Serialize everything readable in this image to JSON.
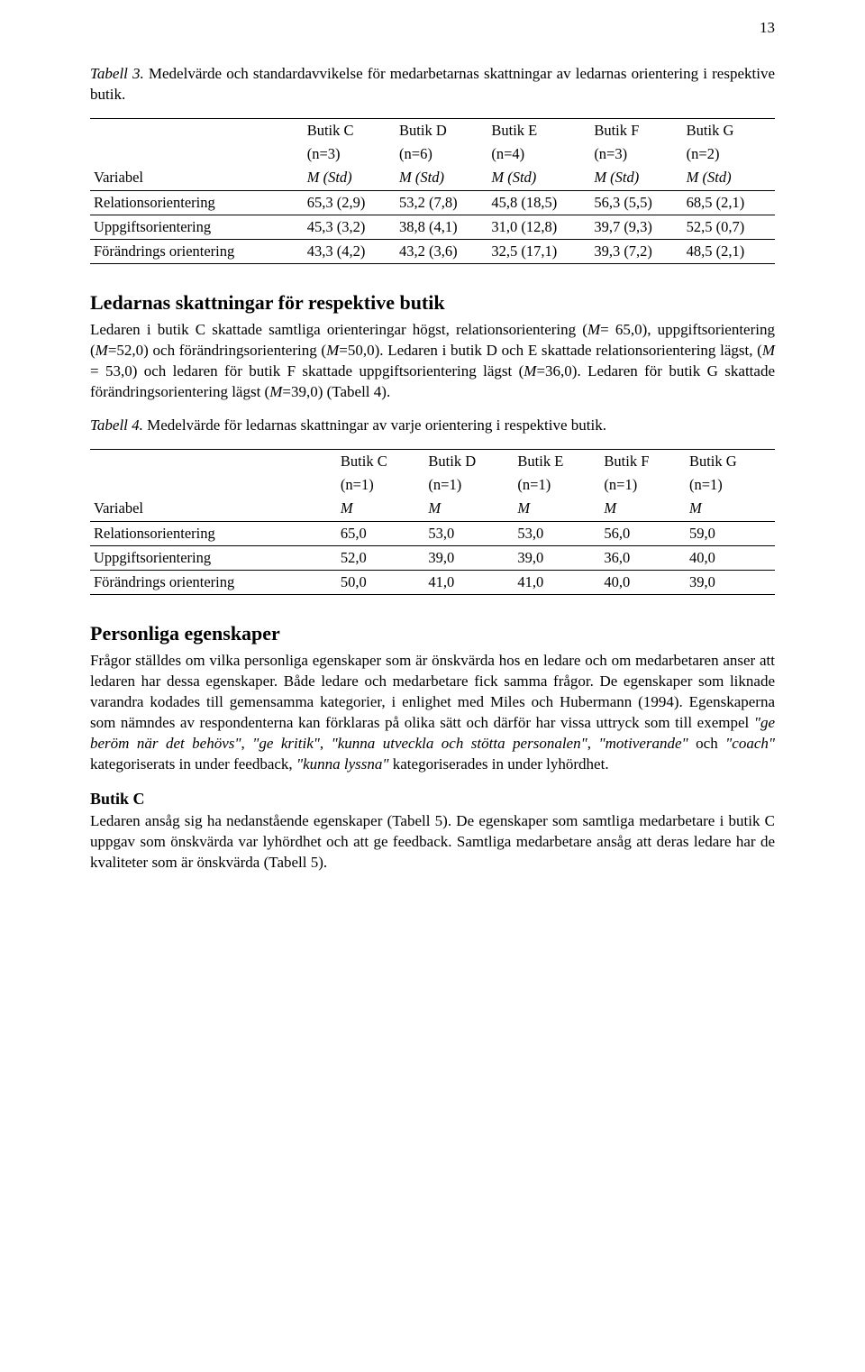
{
  "page_number": "13",
  "table3": {
    "caption_prefix": "Tabell 3.",
    "caption_rest": " Medelvärde och standardavvikelse för medarbetarnas skattningar av ledarnas orientering i respektive butik.",
    "columns": [
      {
        "top": "Butik C",
        "n": "(n=3)",
        "stat": "M (Std)"
      },
      {
        "top": "Butik D",
        "n": "(n=6)",
        "stat": "M (Std)"
      },
      {
        "top": "Butik E",
        "n": "(n=4)",
        "stat": "M (Std)"
      },
      {
        "top": "Butik F",
        "n": "(n=3)",
        "stat": "M (Std)"
      },
      {
        "top": "Butik G",
        "n": "(n=2)",
        "stat": "M (Std)"
      }
    ],
    "var_label": "Variabel",
    "rows": [
      {
        "label": "Relationsorientering",
        "cells": [
          "65,3 (2,9)",
          "53,2 (7,8)",
          "45,8 (18,5)",
          "56,3 (5,5)",
          "68,5 (2,1)"
        ]
      },
      {
        "label": "Uppgiftsorientering",
        "cells": [
          "45,3 (3,2)",
          "38,8 (4,1)",
          "31,0 (12,8)",
          "39,7 (9,3)",
          "52,5 (0,7)"
        ]
      },
      {
        "label": "Förändrings orientering",
        "cells": [
          "43,3 (4,2)",
          "43,2 (3,6)",
          "32,5 (17,1)",
          "39,3 (7,2)",
          "48,5 (2,1)"
        ]
      }
    ]
  },
  "section1_heading": "Ledarnas skattningar för respektive butik",
  "section1_para_html": "Ledaren i butik C skattade samtliga orienteringar högst, relationsorientering (<span class=\"ital\">M</span>= 65,0), uppgiftsorientering (<span class=\"ital\">M</span>=52,0) och förändringsorientering (<span class=\"ital\">M</span>=50,0). Ledaren i butik D och E skattade relationsorientering lägst, (<span class=\"ital\">M</span> = 53,0) och ledaren för butik F skattade uppgiftsorientering lägst (<span class=\"ital\">M</span>=36,0). Ledaren för butik G skattade förändringsorientering lägst (<span class=\"ital\">M</span>=39,0) (Tabell 4).",
  "table4": {
    "caption_prefix": "Tabell 4.",
    "caption_rest": " Medelvärde för ledarnas skattningar av varje orientering i respektive butik.",
    "columns": [
      {
        "top": "Butik C",
        "n": "(n=1)",
        "stat": "M"
      },
      {
        "top": "Butik D",
        "n": "(n=1)",
        "stat": "M"
      },
      {
        "top": "Butik E",
        "n": "(n=1)",
        "stat": "M"
      },
      {
        "top": "Butik F",
        "n": "(n=1)",
        "stat": "M"
      },
      {
        "top": "Butik G",
        "n": "(n=1)",
        "stat": "M"
      }
    ],
    "var_label": "Variabel",
    "rows": [
      {
        "label": "Relationsorientering",
        "cells": [
          "65,0",
          "53,0",
          "53,0",
          "56,0",
          "59,0"
        ]
      },
      {
        "label": "Uppgiftsorientering",
        "cells": [
          "52,0",
          "39,0",
          "39,0",
          "36,0",
          "40,0"
        ]
      },
      {
        "label": "Förändrings orientering",
        "cells": [
          "50,0",
          "41,0",
          "41,0",
          "40,0",
          "39,0"
        ]
      }
    ]
  },
  "section2_heading": "Personliga egenskaper",
  "section2_para_html": "Frågor ställdes om vilka personliga egenskaper som är önskvärda hos en ledare och om medarbetaren anser att ledaren har dessa egenskaper. Både ledare och medarbetare fick samma frågor. De egenskaper som liknade varandra kodades till gemensamma kategorier, i enlighet med Miles och Hubermann (1994). Egenskaperna som nämndes av respondenterna kan förklaras på olika sätt och därför har vissa uttryck som till exempel <span class=\"ital\">\"ge beröm när det behövs\"</span>, <span class=\"ital\">\"ge kritik\"</span>, <span class=\"ital\">\"kunna utveckla och stötta personalen\"</span>, <span class=\"ital\">\"motiverande\"</span> och <span class=\"ital\">\"coach\"</span> kategoriserats in under feedback, <span class=\"ital\">\"kunna lyssna\"</span> kategoriserades in under lyhördhet.",
  "butik_c_heading": "Butik C",
  "butik_c_para": "Ledaren ansåg sig ha nedanstående egenskaper (Tabell 5). De egenskaper som samtliga medarbetare i butik C uppgav som önskvärda var lyhördhet och att ge feedback. Samtliga medarbetare ansåg att deras ledare har de kvaliteter som är önskvärda (Tabell 5)."
}
